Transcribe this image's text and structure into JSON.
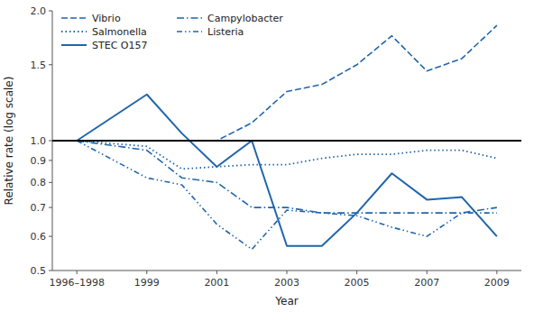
{
  "chart_data": {
    "type": "line",
    "xlabel": "Year",
    "ylabel": "Relative rate (log scale)",
    "log": "y",
    "grid": false,
    "legend": "upper left",
    "x": [
      1997,
      1999,
      2000,
      2001,
      2002,
      2003,
      2004,
      2005,
      2006,
      2007,
      2008,
      2009
    ],
    "series": [
      {
        "name": "Vibrio",
        "color": "#2166ac",
        "line_style": "dashed",
        "values": [
          1.0,
          1.0,
          1.0,
          1.0,
          1.1,
          1.3,
          1.35,
          1.5,
          1.75,
          1.45,
          1.55,
          1.85
        ]
      },
      {
        "name": "Salmonella",
        "color": "#2166ac",
        "line_style": "dotted",
        "values": [
          1.0,
          0.97,
          0.86,
          0.87,
          0.88,
          0.88,
          0.91,
          0.93,
          0.93,
          0.95,
          0.95,
          0.91
        ]
      },
      {
        "name": "STEC O157",
        "color": "#2166ac",
        "line_style": "solid",
        "values": [
          1.0,
          1.28,
          1.04,
          0.87,
          1.0,
          0.57,
          0.57,
          0.68,
          0.84,
          0.73,
          0.74,
          0.6
        ]
      },
      {
        "name": "Campylobacter",
        "color": "#2166ac",
        "line_style": "dashdot",
        "values": [
          1.0,
          0.95,
          0.82,
          0.8,
          0.7,
          0.7,
          0.68,
          0.68,
          0.68,
          0.68,
          0.68,
          0.7
        ]
      },
      {
        "name": "Listeria",
        "color": "#2166ac",
        "line_style": "dashdotdot",
        "values": [
          1.0,
          0.82,
          0.79,
          0.64,
          0.56,
          0.69,
          0.68,
          0.67,
          0.63,
          0.6,
          0.68,
          0.68
        ]
      }
    ],
    "hlines": [
      {
        "value": 1.0,
        "color": "#000000"
      }
    ],
    "ylim": [
      0.5,
      2.0
    ],
    "yticks": [
      0.5,
      0.6,
      0.7,
      0.8,
      0.9,
      {
        "value": 1.0,
        "label": "1.0"
      },
      1.5,
      {
        "value": 2.0,
        "label": "2.0"
      }
    ],
    "xlim": [
      1996.3,
      2009.7
    ],
    "xticks": [
      {
        "value": 1997,
        "label": "1996–1998"
      },
      1999,
      2001,
      2003,
      2005,
      2007,
      2009
    ]
  }
}
